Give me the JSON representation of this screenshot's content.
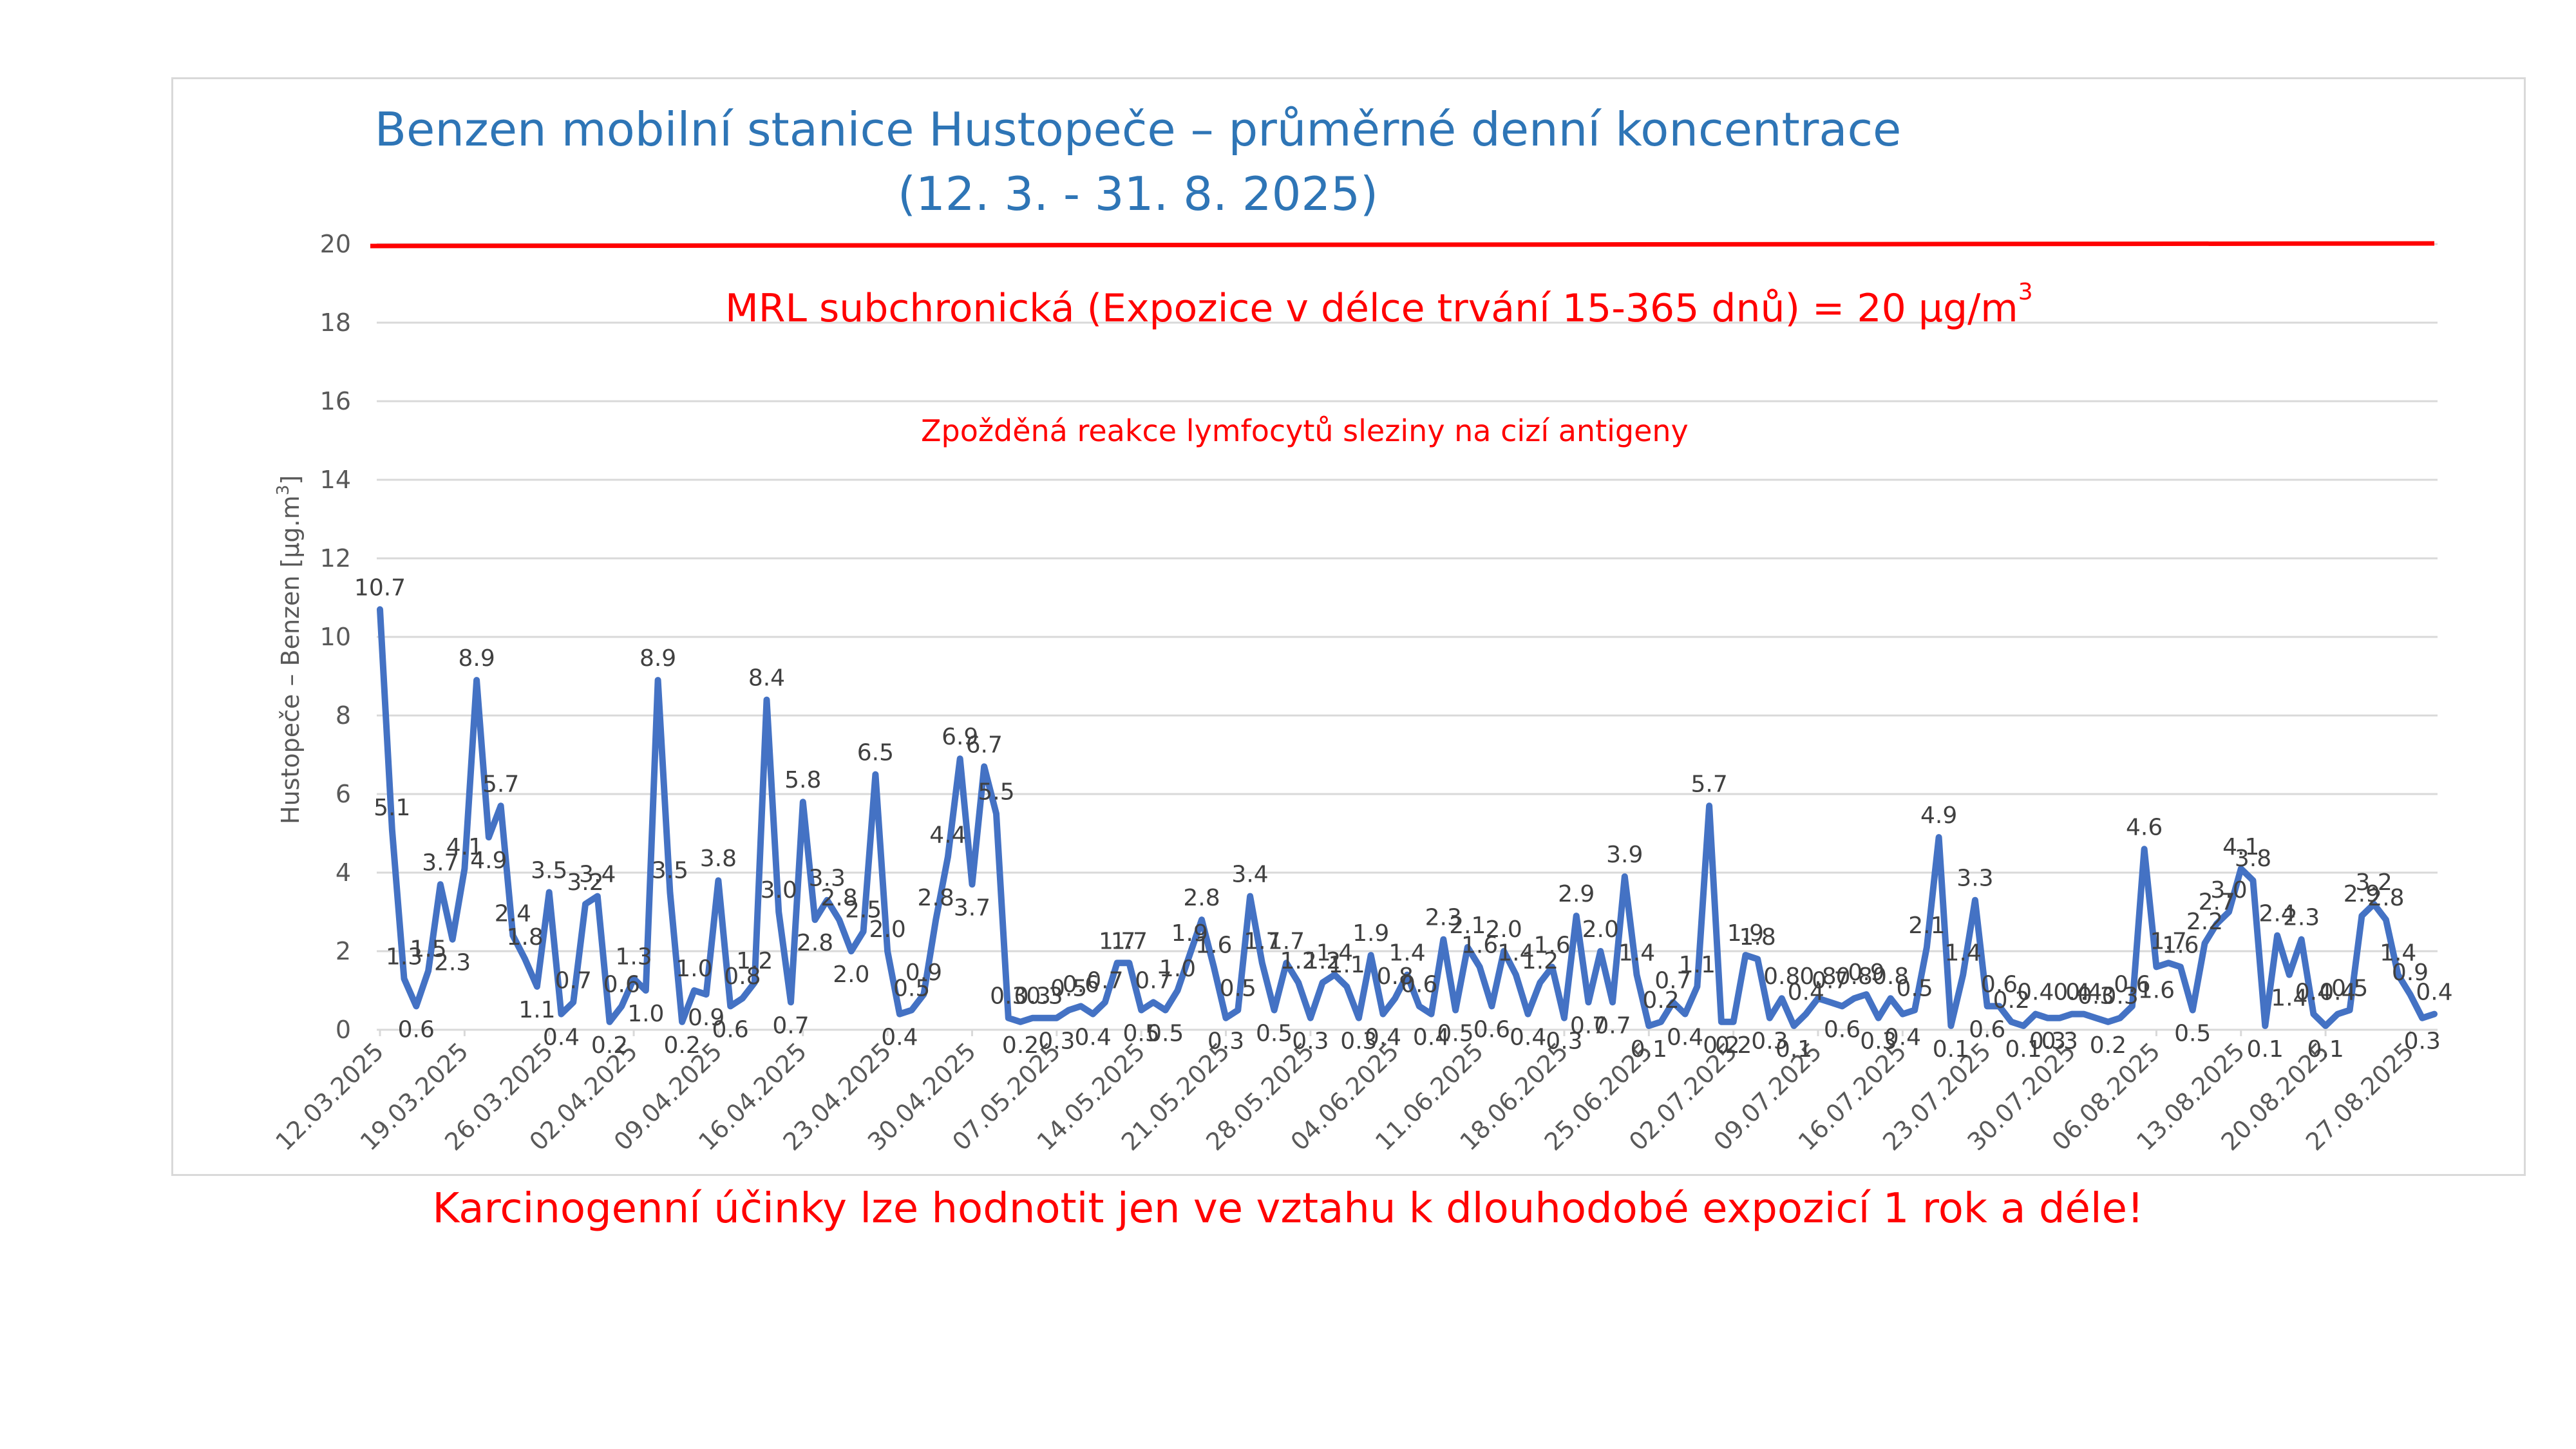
{
  "chart_data": {
    "type": "line",
    "title_line1": "Benzen mobilní stanice Hustopeče – průměrné denní koncentrace",
    "title_line2": "(12. 3. - 31. 8. 2025)",
    "ylabel": "Hustopeče – Benzen  [µg.m",
    "ylabel_sup": "3",
    "ylabel_end": "]",
    "ylim": [
      0,
      20
    ],
    "yticks": [
      "0",
      "2",
      "4",
      "6",
      "8",
      "10",
      "12",
      "14",
      "16",
      "18",
      "20"
    ],
    "x_start": "2025-03-12",
    "x_end": "2025-08-31",
    "xticks": [
      "12.03.2025",
      "19.03.2025",
      "26.03.2025",
      "02.04.2025",
      "09.04.2025",
      "16.04.2025",
      "23.04.2025",
      "30.04.2025",
      "07.05.2025",
      "14.05.2025",
      "21.05.2025",
      "28.05.2025",
      "04.06.2025",
      "11.06.2025",
      "18.06.2025",
      "25.06.2025",
      "02.07.2025",
      "09.07.2025",
      "16.07.2025",
      "23.07.2025",
      "30.07.2025",
      "06.08.2025",
      "13.08.2025",
      "20.08.2025",
      "27.08.2025"
    ],
    "series": [
      {
        "color": "#4472c4",
        "values": [
          10.7,
          5.1,
          1.3,
          0.6,
          1.5,
          3.7,
          2.3,
          4.1,
          8.9,
          4.9,
          5.7,
          2.4,
          1.8,
          1.1,
          3.5,
          0.4,
          0.7,
          3.2,
          3.4,
          0.2,
          0.6,
          1.3,
          1.0,
          8.9,
          3.5,
          0.2,
          1.0,
          0.9,
          3.8,
          0.6,
          0.8,
          1.2,
          8.4,
          3.0,
          0.7,
          5.8,
          2.8,
          3.3,
          2.8,
          2.0,
          2.5,
          6.5,
          2.0,
          0.4,
          0.5,
          0.9,
          2.8,
          4.4,
          6.9,
          3.7,
          6.7,
          5.5,
          0.3,
          0.2,
          0.3,
          0.3,
          0.3,
          0.5,
          0.6,
          0.4,
          0.7,
          1.7,
          1.7,
          0.5,
          0.7,
          0.5,
          1.0,
          1.9,
          2.8,
          1.6,
          0.3,
          0.5,
          3.4,
          1.7,
          0.5,
          1.7,
          1.2,
          0.3,
          1.2,
          1.4,
          1.1,
          0.3,
          1.9,
          0.4,
          0.8,
          1.4,
          0.6,
          0.4,
          2.3,
          0.5,
          2.1,
          1.6,
          0.6,
          2.0,
          1.4,
          0.4,
          1.2,
          1.6,
          0.3,
          2.9,
          0.7,
          2.0,
          0.7,
          3.9,
          1.4,
          0.1,
          0.2,
          0.7,
          0.4,
          1.1,
          5.7,
          0.2,
          0.2,
          1.9,
          1.8,
          0.3,
          0.8,
          0.1,
          0.4,
          0.8,
          0.7,
          0.6,
          0.8,
          0.9,
          0.3,
          0.8,
          0.4,
          0.5,
          2.1,
          4.9,
          0.1,
          1.4,
          3.3,
          0.6,
          0.6,
          0.2,
          0.1,
          0.4,
          0.3,
          0.3,
          0.4,
          0.4,
          0.3,
          0.2,
          0.3,
          0.6,
          4.6,
          1.6,
          1.7,
          1.6,
          0.5,
          2.2,
          2.7,
          3.0,
          4.1,
          3.8,
          0.1,
          2.4,
          1.4,
          2.3,
          0.4,
          0.1,
          0.4,
          0.5,
          2.9,
          3.2,
          2.8,
          1.4,
          0.9,
          0.3,
          0.4
        ]
      }
    ],
    "threshold": {
      "value": 20,
      "color": "#ff0000",
      "label": "MRL subchronická (Expozice v délce trvání 15-365 dnů) = 20 µg/m",
      "label_sup": "3",
      "note": "Zpožděná reakce lymfocytů sleziny na cizí antigeny"
    },
    "grid": true,
    "legend": "none",
    "data_labels": true
  },
  "footer_text": "Karcinogenní účinky lze hodnotit jen ve vztahu k dlouhodobé expozicí 1 rok a déle!"
}
